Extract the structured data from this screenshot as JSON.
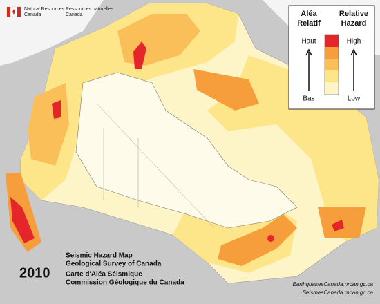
{
  "header": {
    "agency_en": [
      "Natural Resources",
      "Canada"
    ],
    "agency_fr": [
      "Ressources naturelles",
      "Canada"
    ]
  },
  "legend": {
    "title_fr": [
      "Aléa",
      "Relatif"
    ],
    "title_en": [
      "Relative",
      "Hazard"
    ],
    "high_fr": "Haut",
    "high_en": "High",
    "low_fr": "Bas",
    "low_en": "Low"
  },
  "map": {
    "year": "2010",
    "titles": [
      "Seismic Hazard Map",
      "Geological Survey of Canada",
      "Carte d'Aléa Séismique",
      "Commission Géologique du Canada"
    ],
    "urls": [
      "EarthquakesCanada.nrcan.gc.ca",
      "SeismesCanada.rncan.gc.ca"
    ]
  }
}
